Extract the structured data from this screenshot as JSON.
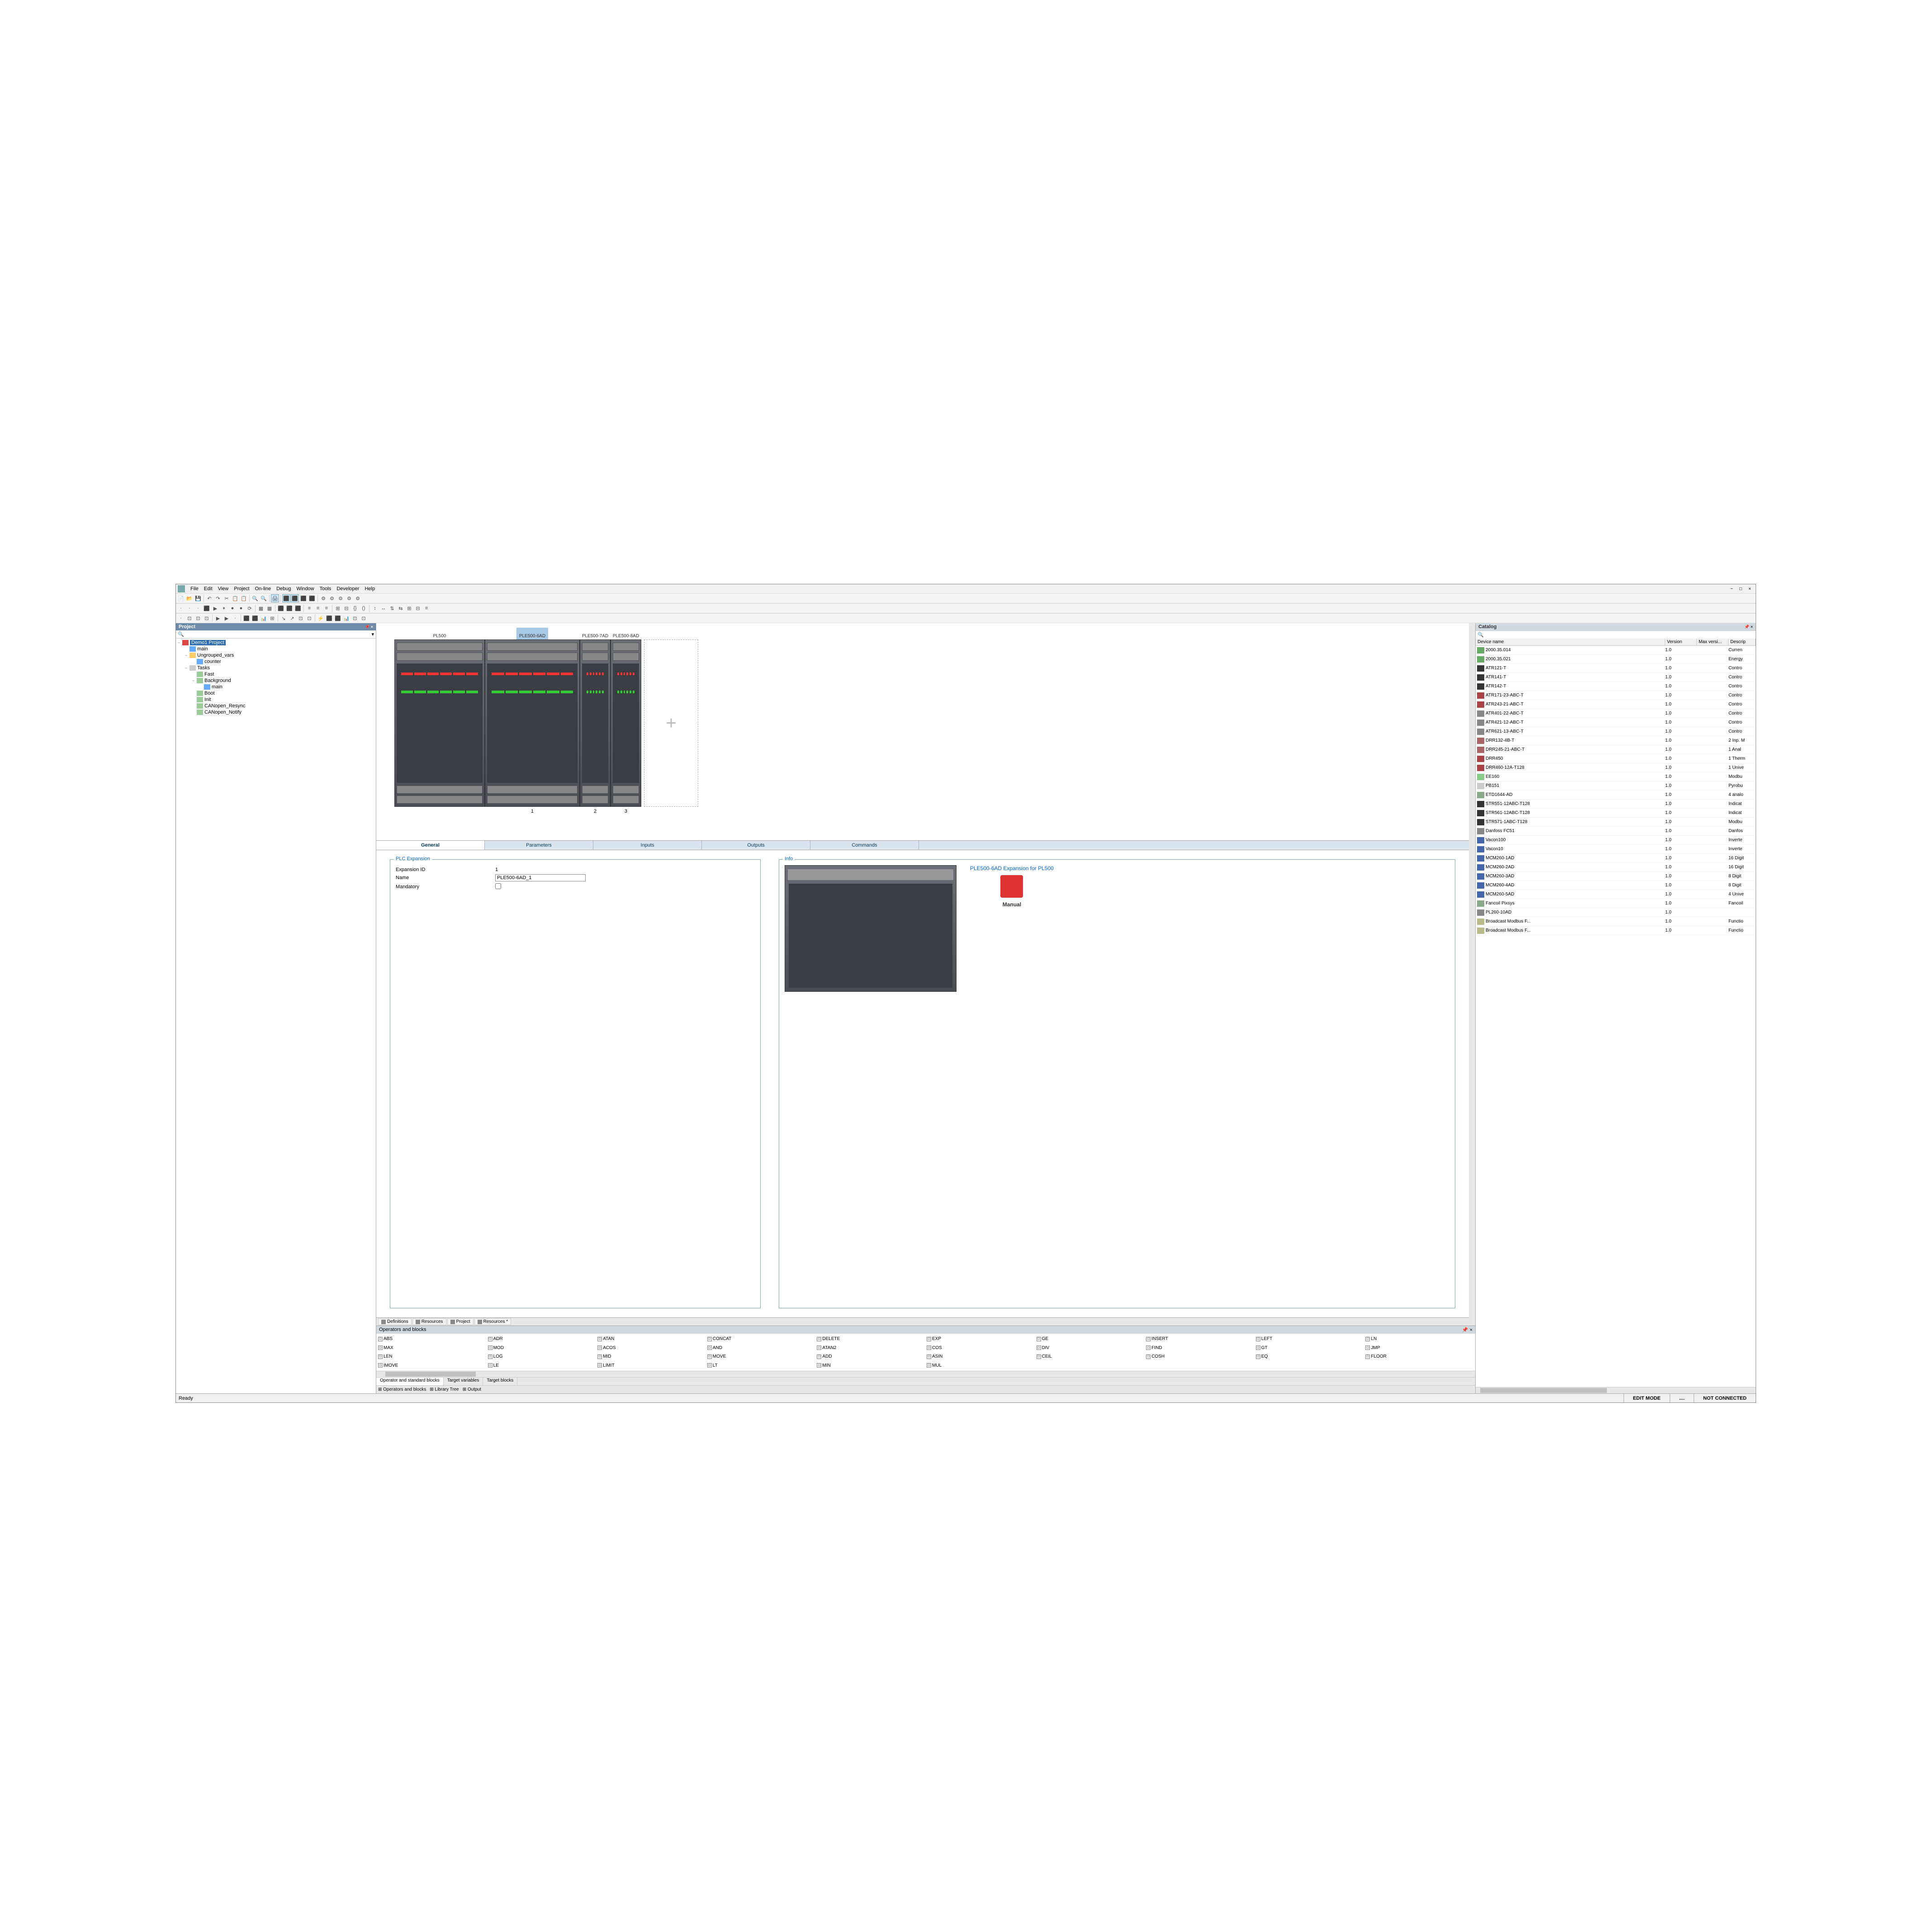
{
  "menu": [
    "File",
    "Edit",
    "View",
    "Project",
    "On-line",
    "Debug",
    "Window",
    "Tools",
    "Developer",
    "Help"
  ],
  "project_panel": {
    "title": "Project",
    "root": "Demo1 Project",
    "nodes": [
      {
        "indent": 1,
        "tw": "",
        "ic": "ic-var",
        "label": "main"
      },
      {
        "indent": 1,
        "tw": "−",
        "ic": "ic-fold",
        "label": "Ungrouped_vars"
      },
      {
        "indent": 2,
        "tw": "",
        "ic": "ic-var",
        "label": "counter"
      },
      {
        "indent": 1,
        "tw": "−",
        "ic": "ic-task",
        "label": "Tasks"
      },
      {
        "indent": 2,
        "tw": "",
        "ic": "ic-fn",
        "label": "Fast"
      },
      {
        "indent": 2,
        "tw": "−",
        "ic": "ic-fn",
        "label": "Background"
      },
      {
        "indent": 3,
        "tw": "",
        "ic": "ic-var",
        "label": "main"
      },
      {
        "indent": 2,
        "tw": "",
        "ic": "ic-fn",
        "label": "Boot"
      },
      {
        "indent": 2,
        "tw": "",
        "ic": "ic-fn",
        "label": "Init"
      },
      {
        "indent": 2,
        "tw": "",
        "ic": "ic-fn",
        "label": "CANopen_Resync"
      },
      {
        "indent": 2,
        "tw": "",
        "ic": "ic-fn",
        "label": "CANopen_Notify"
      }
    ]
  },
  "devices": {
    "items": [
      {
        "label": "PL500",
        "sel": false,
        "w": "main",
        "num": ""
      },
      {
        "label": "PLE500-6AD",
        "sel": true,
        "w": "exp",
        "num": "1"
      },
      {
        "label": "PLE500-7AD",
        "sel": false,
        "w": "small",
        "num": "2"
      },
      {
        "label": "PLE500-8AD",
        "sel": false,
        "w": "small",
        "num": "3"
      }
    ]
  },
  "config_tabs": [
    "General",
    "Parameters",
    "Inputs",
    "Outputs",
    "Commands"
  ],
  "active_tab": 0,
  "form": {
    "legend": "PLC Expansion",
    "expansion_id_label": "Expansion ID",
    "expansion_id": "1",
    "name_label": "Name",
    "name": "PLE500-6AD_1",
    "mandatory_label": "Mandatory",
    "mandatory": false
  },
  "info": {
    "legend": "Info",
    "title": "PLE500-6AD Expansion for PL500",
    "manual": "Manual"
  },
  "bottom_tabs": [
    "Definitions",
    "Resources",
    "Project",
    "Resources *"
  ],
  "ops_title": "Operators and blocks",
  "ops": [
    "ABS",
    "ADR",
    "ATAN",
    "CONCAT",
    "DELETE",
    "EXP",
    "GE",
    "INSERT",
    "LEFT",
    "LN",
    "MAX",
    "MOD",
    "ACOS",
    "AND",
    "ATAN2",
    "COS",
    "DIV",
    "FIND",
    "GT",
    "JMP",
    "LEN",
    "LOG",
    "MID",
    "MOVE",
    "ADD",
    "ASIN",
    "CEIL",
    "COSH",
    "EQ",
    "FLOOR",
    "IMOVE",
    "LE",
    "LIMIT",
    "LT",
    "MIN",
    "MUL"
  ],
  "lower_tabs": [
    "Operator and standard blocks",
    "Target variables",
    "Target blocks"
  ],
  "lower_tabs2": [
    "Operators and blocks",
    "Library Tree",
    "Output"
  ],
  "catalog": {
    "title": "Catalog",
    "cols": [
      "Device name",
      "Version",
      "Max versi...",
      "Descrip"
    ],
    "rows": [
      {
        "ic": "#6a6",
        "name": "2000.35.014",
        "v": "1.0",
        "d": "Curren"
      },
      {
        "ic": "#6a6",
        "name": "2000.35.021",
        "v": "1.0",
        "d": "Energy"
      },
      {
        "ic": "#333",
        "name": "ATR121-T",
        "v": "1.0",
        "d": "Contro"
      },
      {
        "ic": "#333",
        "name": "ATR141-T",
        "v": "1.0",
        "d": "Contro"
      },
      {
        "ic": "#333",
        "name": "ATR142-T",
        "v": "1.0",
        "d": "Contro"
      },
      {
        "ic": "#a44",
        "name": "ATR171-23-ABC-T",
        "v": "1.0",
        "d": "Contro"
      },
      {
        "ic": "#a44",
        "name": "ATR243-21-ABC-T",
        "v": "1.0",
        "d": "Contro"
      },
      {
        "ic": "#888",
        "name": "ATR401-22-ABC-T",
        "v": "1.0",
        "d": "Contro"
      },
      {
        "ic": "#888",
        "name": "ATR421-12-ABC-T",
        "v": "1.0",
        "d": "Contro"
      },
      {
        "ic": "#888",
        "name": "ATR621-13-ABC-T",
        "v": "1.0",
        "d": "Contro"
      },
      {
        "ic": "#a66",
        "name": "DRR132-4B-T",
        "v": "1.0",
        "d": "2 Inp. M"
      },
      {
        "ic": "#a66",
        "name": "DRR245-21-ABC-T",
        "v": "1.0",
        "d": "1 Anal"
      },
      {
        "ic": "#a44",
        "name": "DRR450",
        "v": "1.0",
        "d": "1 Therm"
      },
      {
        "ic": "#a44",
        "name": "DRR460-12A-T128",
        "v": "1.0",
        "d": "1 Unive"
      },
      {
        "ic": "#8c8",
        "name": "EE160",
        "v": "1.0",
        "d": "Modbu"
      },
      {
        "ic": "#ccc",
        "name": "PB151",
        "v": "1.0",
        "d": "Pyrobu"
      },
      {
        "ic": "#8a8",
        "name": "ETD1644-AD",
        "v": "1.0",
        "d": "4 analo"
      },
      {
        "ic": "#333",
        "name": "STR551-12ABC-T128",
        "v": "1.0",
        "d": "Indicat"
      },
      {
        "ic": "#333",
        "name": "STR561-12ABC-T128",
        "v": "1.0",
        "d": "Indicat"
      },
      {
        "ic": "#333",
        "name": "STR571-1ABC-T128",
        "v": "1.0",
        "d": "Modbu"
      },
      {
        "ic": "#888",
        "name": "Danfoss FC51",
        "v": "1.0",
        "d": "Danfos"
      },
      {
        "ic": "#46a",
        "name": "Vacon100",
        "v": "1.0",
        "d": "Inverte"
      },
      {
        "ic": "#46a",
        "name": "Vacon10",
        "v": "1.0",
        "d": "Inverte"
      },
      {
        "ic": "#46a",
        "name": "MCM260-1AD",
        "v": "1.0",
        "d": "16 Digit"
      },
      {
        "ic": "#46a",
        "name": "MCM260-2AD",
        "v": "1.0",
        "d": "16 Digit"
      },
      {
        "ic": "#46a",
        "name": "MCM260-3AD",
        "v": "1.0",
        "d": "8 Digit"
      },
      {
        "ic": "#46a",
        "name": "MCM260-4AD",
        "v": "1.0",
        "d": "8 Digit"
      },
      {
        "ic": "#46a",
        "name": "MCM260-5AD",
        "v": "1.0",
        "d": "4 Unive"
      },
      {
        "ic": "#8a8",
        "name": "Fancoil Pixsys",
        "v": "1.0",
        "d": "Fancoil"
      },
      {
        "ic": "#888",
        "name": "PL260-10AD",
        "v": "1.0",
        "d": ""
      },
      {
        "ic": "#bb8",
        "name": "Broadcast Modbus F...",
        "v": "1.0",
        "d": "Functio"
      },
      {
        "ic": "#bb8",
        "name": "Broadcast Modbus F...",
        "v": "1.0",
        "d": "Functio"
      }
    ]
  },
  "status": {
    "ready": "Ready",
    "mode": "EDIT MODE",
    "mid": "....",
    "conn": "NOT CONNECTED"
  }
}
